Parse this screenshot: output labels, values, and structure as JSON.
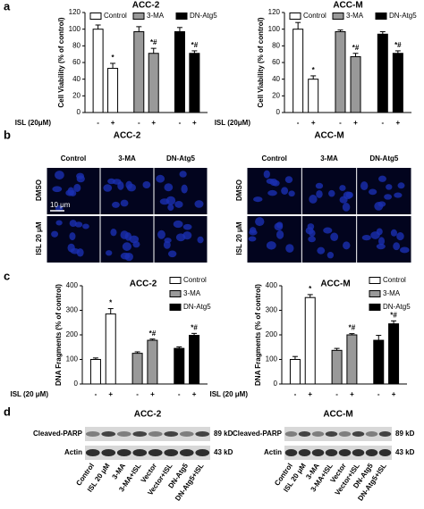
{
  "panel_labels": [
    "a",
    "b",
    "c",
    "d"
  ],
  "chart_data": [
    {
      "type": "bar",
      "title": "ACC-2",
      "y_label": "Cell Viability (% of control)",
      "x_label": "ISL (20μM)",
      "categories": [
        "-",
        "+",
        "-",
        "+",
        "-",
        "+"
      ],
      "ylim": [
        0,
        120
      ],
      "yticks": [
        0,
        20,
        40,
        60,
        80,
        100,
        120
      ],
      "legend_position": "top",
      "series": [
        {
          "name": "Control",
          "color": "#ffffff",
          "values": [
            100,
            53,
            null,
            null,
            null,
            null
          ],
          "errors": [
            5,
            6,
            null,
            null,
            null,
            null
          ],
          "significance": [
            null,
            "*",
            null,
            null,
            null,
            null
          ]
        },
        {
          "name": "3-MA",
          "color": "#999999",
          "values": [
            null,
            null,
            97,
            71,
            null,
            null
          ],
          "errors": [
            null,
            null,
            6,
            6,
            null,
            null
          ],
          "significance": [
            null,
            null,
            null,
            "*#",
            null,
            null
          ]
        },
        {
          "name": "DN-Atg5",
          "color": "#000000",
          "values": [
            null,
            null,
            null,
            null,
            97,
            71
          ],
          "errors": [
            null,
            null,
            null,
            null,
            5,
            3
          ],
          "significance": [
            null,
            null,
            null,
            null,
            null,
            "*#"
          ]
        }
      ]
    },
    {
      "type": "bar",
      "title": "ACC-M",
      "y_label": "Cell Viability (% of control)",
      "x_label": "ISL (20μM)",
      "categories": [
        "-",
        "+",
        "-",
        "+",
        "-",
        "+"
      ],
      "ylim": [
        0,
        120
      ],
      "yticks": [
        0,
        20,
        40,
        60,
        80,
        100,
        120
      ],
      "legend_position": "top",
      "series": [
        {
          "name": "Control",
          "color": "#ffffff",
          "values": [
            100,
            40,
            null,
            null,
            null,
            null
          ],
          "errors": [
            8,
            4,
            null,
            null,
            null,
            null
          ],
          "significance": [
            null,
            "*",
            null,
            null,
            null,
            null
          ]
        },
        {
          "name": "3-MA",
          "color": "#999999",
          "values": [
            null,
            null,
            97,
            67,
            null,
            null
          ],
          "errors": [
            null,
            null,
            2,
            4,
            null,
            null
          ],
          "significance": [
            null,
            null,
            null,
            "*#",
            null,
            null
          ]
        },
        {
          "name": "DN-Atg5",
          "color": "#000000",
          "values": [
            null,
            null,
            null,
            null,
            94,
            71
          ],
          "errors": [
            null,
            null,
            null,
            null,
            3,
            3
          ],
          "significance": [
            null,
            null,
            null,
            null,
            null,
            "*#"
          ]
        }
      ]
    },
    {
      "type": "bar",
      "title": "ACC-2",
      "y_label": "DNA Fragments (% of control)",
      "x_label": "ISL (20 μM)",
      "categories": [
        "-",
        "+",
        "-",
        "+",
        "-",
        "+"
      ],
      "ylim": [
        0,
        400
      ],
      "yticks": [
        0,
        100,
        200,
        300,
        400
      ],
      "legend_position": "upper right",
      "series": [
        {
          "name": "Control",
          "color": "#ffffff",
          "values": [
            100,
            285,
            null,
            null,
            null,
            null
          ],
          "errors": [
            6,
            22,
            null,
            null,
            null,
            null
          ],
          "significance": [
            null,
            "*",
            null,
            null,
            null,
            null
          ]
        },
        {
          "name": "3-MA",
          "color": "#999999",
          "values": [
            null,
            null,
            125,
            178,
            null,
            null
          ],
          "errors": [
            null,
            null,
            6,
            5,
            null,
            null
          ],
          "significance": [
            null,
            null,
            null,
            "*#",
            null,
            null
          ]
        },
        {
          "name": "DN-Atg5",
          "color": "#000000",
          "values": [
            null,
            null,
            null,
            null,
            145,
            198
          ],
          "errors": [
            null,
            null,
            null,
            null,
            6,
            8
          ],
          "significance": [
            null,
            null,
            null,
            null,
            null,
            "*#"
          ]
        }
      ]
    },
    {
      "type": "bar",
      "title": "ACC-M",
      "y_label": "DNA Fragments (% of control)",
      "x_label": "ISL (20 μM)",
      "categories": [
        "-",
        "+",
        "-",
        "+",
        "-",
        "+"
      ],
      "ylim": [
        0,
        400
      ],
      "yticks": [
        0,
        100,
        200,
        300,
        400
      ],
      "legend_position": "upper right",
      "series": [
        {
          "name": "Control",
          "color": "#ffffff",
          "values": [
            100,
            352,
            null,
            null,
            null,
            null
          ],
          "errors": [
            12,
            12,
            null,
            null,
            null,
            null
          ],
          "significance": [
            null,
            "*",
            null,
            null,
            null,
            null
          ]
        },
        {
          "name": "3-MA",
          "color": "#999999",
          "values": [
            null,
            null,
            137,
            200,
            null,
            null
          ],
          "errors": [
            null,
            null,
            8,
            5,
            null,
            null
          ],
          "significance": [
            null,
            null,
            null,
            "*#",
            null,
            null
          ]
        },
        {
          "name": "DN-Atg5",
          "color": "#000000",
          "values": [
            null,
            null,
            null,
            null,
            178,
            245
          ],
          "errors": [
            null,
            null,
            null,
            null,
            20,
            12
          ],
          "significance": [
            null,
            null,
            null,
            null,
            null,
            "*#"
          ]
        }
      ]
    }
  ],
  "microscopy": {
    "scale_bar": "10 μm",
    "blocks": [
      {
        "title": "ACC-2",
        "columns": [
          "Control",
          "3-MA",
          "DN-Atg5"
        ],
        "rows": [
          "DMSO",
          "ISL 20 μM"
        ]
      },
      {
        "title": "ACC-M",
        "columns": [
          "Control",
          "3-MA",
          "DN-Atg5"
        ],
        "rows": [
          "DMSO",
          "ISL 20 μM"
        ]
      }
    ]
  },
  "blots": [
    {
      "title": "ACC-2",
      "rows": [
        "Cleaved-PARP",
        "Actin"
      ],
      "sizes": [
        "89 kD",
        "43 kD"
      ],
      "lanes": [
        "Control",
        "ISL 20 μM",
        "3-MA",
        "3-MA+ISL",
        "Vector",
        "Vector+ISL",
        "DN-Atg5",
        "DN-Atg5+ISL"
      ]
    },
    {
      "title": "ACC-M",
      "rows": [
        "Cleaved-PARP",
        "Actin"
      ],
      "sizes": [
        "89 kD",
        "43 kD"
      ],
      "lanes": [
        "Control",
        "ISL 20 μM",
        "3-MA",
        "3-MA+ISL",
        "Vector",
        "Vector+ISL",
        "DN-Atg5",
        "DN-Atg5+ISL"
      ]
    }
  ]
}
